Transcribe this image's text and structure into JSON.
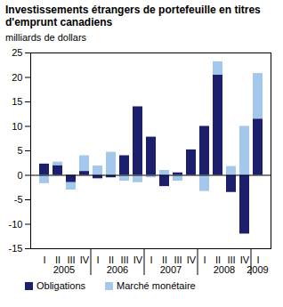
{
  "chart_data": {
    "type": "bar",
    "title": "Investissements étrangers de portefeuille en titres d'emprunt canadiens",
    "subtitle": "milliards de dollars",
    "categories": [
      "I",
      "II",
      "III",
      "IV",
      "I",
      "II",
      "III",
      "IV",
      "I",
      "II",
      "III",
      "IV",
      "I",
      "II",
      "III",
      "IV",
      "I"
    ],
    "years": [
      "2005",
      "2005",
      "2005",
      "2005",
      "2006",
      "2006",
      "2006",
      "2006",
      "2007",
      "2007",
      "2007",
      "2007",
      "2008",
      "2008",
      "2008",
      "2008",
      "2009"
    ],
    "series": [
      {
        "name": "Obligations",
        "color": "#1c1f6b",
        "values": [
          2.3,
          2.0,
          -1.5,
          0.8,
          -0.7,
          -0.5,
          4.0,
          14.0,
          7.8,
          -2.3,
          0.5,
          5.2,
          10.0,
          20.5,
          -3.5,
          -12.0,
          11.5
        ]
      },
      {
        "name": "Marché monétaire",
        "color": "#a3c8ec",
        "values": [
          -1.7,
          0.7,
          -1.5,
          3.2,
          1.9,
          4.7,
          -1.2,
          -1.5,
          -0.5,
          1.0,
          -1.2,
          0,
          -3.3,
          2.7,
          1.8,
          10.0,
          9.3
        ]
      }
    ],
    "stacked": true,
    "ylim": [
      -15,
      25
    ],
    "yticks": [
      -15,
      -10,
      -5,
      0,
      5,
      10,
      15,
      20,
      25
    ],
    "grid": false,
    "legend": "bottom"
  }
}
